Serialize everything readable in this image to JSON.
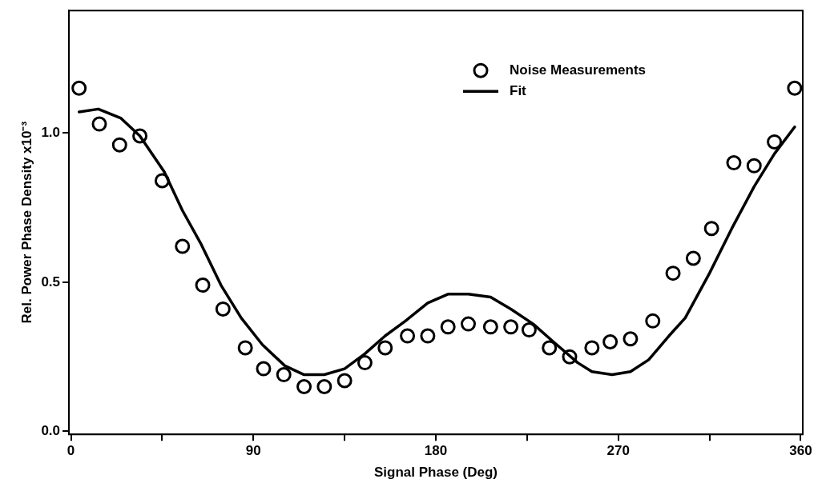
{
  "chart_data": {
    "type": "scatter",
    "xlabel": "Signal Phase (Deg)",
    "ylabel": "Rel. Power Phase Density x10⁻³",
    "xlim": [
      -1,
      361
    ],
    "ylim": [
      -0.01,
      1.41
    ],
    "xticks": [
      0,
      {
        "value": 45,
        "label": null
      },
      90,
      {
        "value": 135,
        "label": null
      },
      180,
      {
        "value": 225,
        "label": null
      },
      270,
      {
        "value": 315,
        "label": null
      },
      360
    ],
    "yticks": [
      {
        "value": 0,
        "label": "0.0"
      },
      0.5,
      {
        "value": 1,
        "label": "1.0"
      }
    ],
    "grid": false,
    "legend": "top right",
    "series": [
      {
        "name": "Noise Measurements",
        "marker": "circle",
        "color": "#000000",
        "x": [
          4,
          14,
          24,
          34,
          45,
          55,
          65,
          75,
          86,
          95,
          105,
          115,
          125,
          135,
          145,
          155,
          166,
          176,
          186,
          196,
          207,
          217,
          226,
          236,
          246,
          257,
          266,
          276,
          287,
          297,
          307,
          316,
          327,
          337,
          347,
          357
        ],
        "values": [
          1.15,
          1.03,
          0.96,
          0.99,
          0.84,
          0.62,
          0.49,
          0.41,
          0.28,
          0.21,
          0.19,
          0.15,
          0.15,
          0.17,
          0.23,
          0.28,
          0.32,
          0.32,
          0.35,
          0.36,
          0.35,
          0.35,
          0.34,
          0.28,
          0.25,
          0.28,
          0.3,
          0.31,
          0.37,
          0.53,
          0.58,
          0.68,
          0.9,
          0.89,
          0.97,
          1.15
        ]
      },
      {
        "name": "Fit",
        "type": "line",
        "marker": "none",
        "line_style": "solid",
        "color": "#000000",
        "x": [
          4,
          13.5,
          24.5,
          34,
          46,
          55,
          64,
          74,
          84,
          94.5,
          105.5,
          115,
          125,
          135,
          145,
          155,
          165,
          176,
          186,
          196,
          207,
          217,
          228,
          238,
          250,
          257,
          267,
          276,
          285,
          295,
          303,
          315,
          326,
          337,
          347,
          357
        ],
        "values": [
          1.07,
          1.08,
          1.05,
          0.99,
          0.87,
          0.74,
          0.63,
          0.49,
          0.38,
          0.29,
          0.22,
          0.19,
          0.19,
          0.21,
          0.26,
          0.32,
          0.37,
          0.43,
          0.46,
          0.46,
          0.45,
          0.41,
          0.36,
          0.3,
          0.23,
          0.2,
          0.19,
          0.2,
          0.24,
          0.32,
          0.38,
          0.53,
          0.68,
          0.82,
          0.93,
          1.02
        ]
      }
    ]
  }
}
